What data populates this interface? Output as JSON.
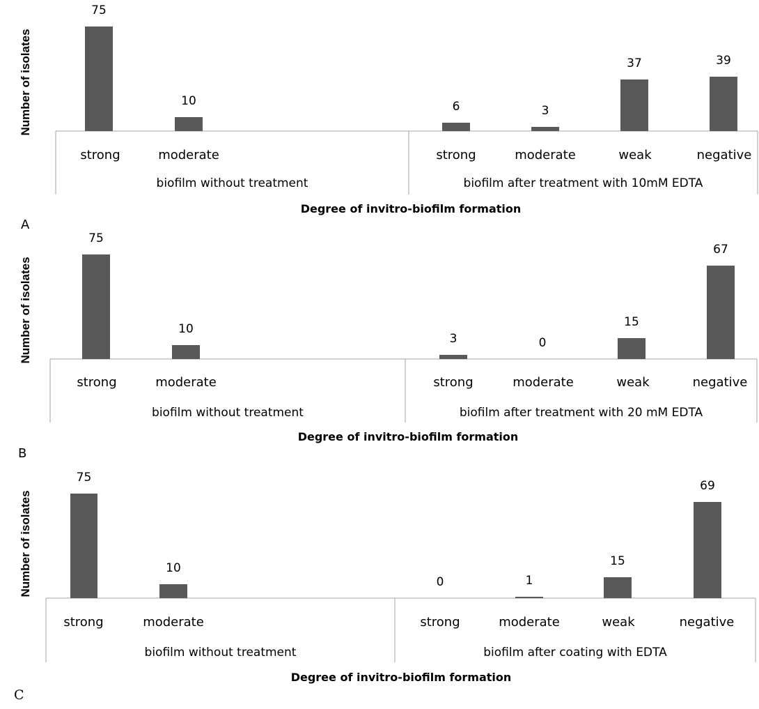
{
  "chart_data": [
    {
      "type": "bar",
      "panel_label": "A",
      "ylabel": "Number of isolates",
      "xlabel": "Degree of invitro-biofilm  formation",
      "groups": [
        {
          "label": "biofilm without treatment",
          "categories": [
            "strong",
            "moderate"
          ],
          "values": [
            75,
            10
          ]
        },
        {
          "label": "biofilm after treatment with 10mM EDTA",
          "categories": [
            "strong",
            "moderate",
            "weak",
            "negative"
          ],
          "values": [
            6,
            3,
            37,
            39
          ]
        }
      ],
      "ylim": [
        0,
        75
      ],
      "bar_color": "#595959",
      "grid": false
    },
    {
      "type": "bar",
      "panel_label": "B",
      "ylabel": "Number of isolates",
      "xlabel": "Degree of invitro-biofilm  formation",
      "groups": [
        {
          "label": "biofilm without treatment",
          "categories": [
            "strong",
            "moderate"
          ],
          "values": [
            75,
            10
          ]
        },
        {
          "label": "biofilm after treatment with 20 mM EDTA",
          "categories": [
            "strong",
            "moderate",
            "weak",
            "negative"
          ],
          "values": [
            3,
            0,
            15,
            67
          ]
        }
      ],
      "ylim": [
        0,
        75
      ],
      "bar_color": "#595959",
      "grid": false
    },
    {
      "type": "bar",
      "panel_label": "C",
      "ylabel": "Number of isolates",
      "xlabel": "Degree of invitro-biofilm  formation",
      "groups": [
        {
          "label": "biofilm without treatment",
          "categories": [
            "strong",
            "moderate"
          ],
          "values": [
            75,
            10
          ]
        },
        {
          "label": "biofilm after coating with EDTA",
          "categories": [
            "strong",
            "moderate",
            "weak",
            "negative"
          ],
          "values": [
            0,
            1,
            15,
            69
          ]
        }
      ],
      "ylim": [
        0,
        75
      ],
      "bar_color": "#595959",
      "grid": false
    }
  ]
}
